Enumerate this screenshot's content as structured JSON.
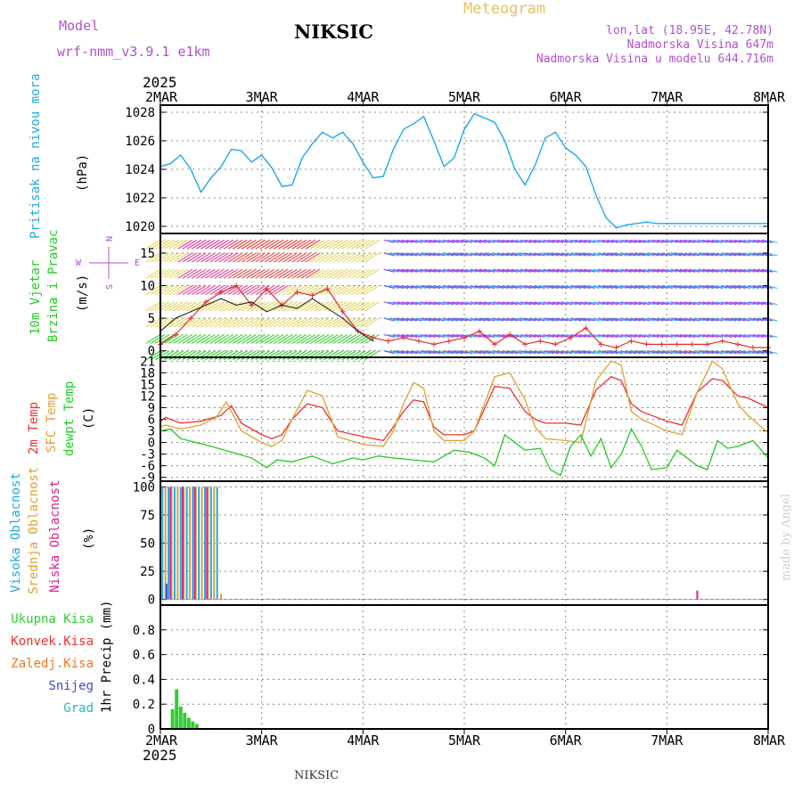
{
  "header": {
    "model_label": "Model",
    "model_name": "wrf-nmm_v3.9.1  e1km",
    "title": "NIKSIC",
    "meteogram": "Meteogram",
    "lonlat": "lon,lat (18.95E, 42.78N)",
    "elevation": "Nadmorska Visina 647m",
    "model_elevation": "Nadmorska Visina u modelu 644.716m",
    "footer_station": "NIKSIC",
    "credit": "made by Angel"
  },
  "colors": {
    "pressure": "#1fa8e6",
    "temp2m": "#ee3030",
    "sfc_temp": "#e0a030",
    "dewpt": "#22cc22",
    "high_cloud": "#1fa8e6",
    "mid_cloud": "#e0a030",
    "low_cloud": "#dd2288",
    "total_precip": "#33cc33",
    "conv_precip": "#ee3030",
    "frz_precip": "#ee7722",
    "snow": "#4444dd",
    "hail": "#22bbbb",
    "header_purple": "#b050d0",
    "meteogram_gold": "#e8c060"
  },
  "time_axis": {
    "year": "2025",
    "labels": [
      "2MAR",
      "3MAR",
      "4MAR",
      "5MAR",
      "6MAR",
      "7MAR",
      "8MAR"
    ]
  },
  "chart_data": [
    {
      "type": "line",
      "panel": "pressure",
      "ylabel_side": "Pritisak na nivou mora",
      "unit": "(hPa)",
      "ylim": [
        1019.5,
        1028.5
      ],
      "yticks": [
        1020,
        1022,
        1024,
        1026,
        1028
      ],
      "x_days": [
        0,
        0.1,
        0.2,
        0.3,
        0.4,
        0.5,
        0.6,
        0.7,
        0.8,
        0.9,
        1.0,
        1.1,
        1.2,
        1.3,
        1.4,
        1.5,
        1.6,
        1.7,
        1.8,
        1.9,
        2.0,
        2.1,
        2.2,
        2.3,
        2.4,
        2.5,
        2.6,
        2.7,
        2.8,
        2.9,
        3.0,
        3.1,
        3.2,
        3.3,
        3.4,
        3.5,
        3.6,
        3.7,
        3.8,
        3.9,
        4.0,
        4.1,
        4.2,
        4.3,
        4.4,
        4.5,
        4.6,
        4.7,
        4.8,
        4.9,
        5.0,
        5.1,
        5.2,
        5.3,
        5.4,
        5.5,
        5.6,
        5.7,
        5.8,
        5.9,
        6.0
      ],
      "values": [
        1024.2,
        1024.4,
        1025.0,
        1024.0,
        1022.4,
        1023.4,
        1024.2,
        1025.4,
        1025.3,
        1024.5,
        1025.0,
        1024.1,
        1022.8,
        1022.9,
        1024.8,
        1025.8,
        1026.6,
        1026.2,
        1026.6,
        1025.8,
        1024.5,
        1023.4,
        1023.5,
        1025.4,
        1026.8,
        1027.2,
        1027.7,
        1026.0,
        1024.2,
        1024.8,
        1026.8,
        1027.9,
        1027.6,
        1027.3,
        1026.0,
        1024.0,
        1022.9,
        1024.3,
        1026.2,
        1026.6,
        1025.5,
        1025.0,
        1024.2,
        1022.2,
        1020.6,
        1019.9,
        1020.1,
        1020.2,
        1020.3,
        1020.2,
        1020.2,
        1020.2,
        1020.2,
        1020.2,
        1020.2,
        1020.2,
        1020.2,
        1020.2,
        1020.2,
        1020.2,
        1020.2
      ]
    },
    {
      "type": "line",
      "panel": "wind",
      "ylabel_side": [
        "10m Vjetar",
        "Brzina i Pravac"
      ],
      "unit": "(m/s)",
      "compass": [
        "N",
        "W",
        "E",
        "S"
      ],
      "ylim": [
        -1,
        18
      ],
      "yticks": [
        0,
        5,
        10,
        15
      ],
      "series": [
        {
          "x": [
            0,
            0.15,
            0.3,
            0.45,
            0.6,
            0.75,
            0.9,
            1.05,
            1.2,
            1.35,
            1.5,
            1.65,
            1.8,
            1.95,
            2.1,
            2.25,
            2.4,
            2.55,
            2.7,
            2.85,
            3.0,
            3.15,
            3.3,
            3.45,
            3.6,
            3.75,
            3.9,
            4.05,
            4.2,
            4.35,
            4.5,
            4.65,
            4.8,
            4.95,
            5.1,
            5.25,
            5.4,
            5.55,
            5.7,
            5.85,
            6.0
          ],
          "values": [
            1.0,
            2.5,
            5.0,
            7.5,
            9.0,
            10.0,
            7.0,
            9.5,
            7.0,
            9.0,
            8.5,
            9.5,
            6.0,
            3.0,
            2.0,
            1.5,
            2.0,
            1.5,
            1.0,
            1.5,
            2.0,
            3.0,
            1.0,
            2.5,
            1.0,
            1.5,
            1.0,
            2.0,
            3.5,
            1.0,
            0.5,
            1.5,
            1.0,
            1.0,
            1.0,
            1.0,
            1.0,
            1.5,
            1.0,
            0.5,
            0.5
          ]
        },
        {
          "x": [
            0,
            0.15,
            0.3,
            0.45,
            0.6,
            0.75,
            0.9,
            1.05,
            1.2,
            1.35,
            1.5,
            1.65,
            1.8,
            1.95,
            2.1
          ],
          "values": [
            3.0,
            5.0,
            6.0,
            7.0,
            8.0,
            7.0,
            7.5,
            6.0,
            7.0,
            6.5,
            8.0,
            6.5,
            5.0,
            3.0,
            1.5
          ]
        }
      ]
    },
    {
      "type": "line",
      "panel": "temperature",
      "ylabel_side": [
        "2m Temp",
        "SFC Temp",
        "dewpt Temp"
      ],
      "unit": "(C)",
      "ylim": [
        -10,
        22
      ],
      "yticks": [
        -9,
        -6,
        -3,
        0,
        3,
        6,
        9,
        12,
        15,
        18,
        21
      ],
      "series": [
        {
          "name": "2m Temp",
          "x": [
            0,
            0.05,
            0.2,
            0.4,
            0.6,
            0.7,
            0.8,
            1.0,
            1.1,
            1.2,
            1.3,
            1.45,
            1.6,
            1.75,
            2.0,
            2.2,
            2.3,
            2.4,
            2.5,
            2.6,
            2.7,
            2.8,
            3.0,
            3.1,
            3.3,
            3.45,
            3.6,
            3.7,
            3.8,
            4.0,
            4.15,
            4.3,
            4.45,
            4.55,
            4.65,
            4.75,
            5.0,
            5.15,
            5.3,
            5.45,
            5.55,
            5.7,
            5.8,
            6.0
          ],
          "values": [
            5.5,
            6.5,
            5.0,
            5.5,
            7.0,
            9.5,
            5.0,
            2.0,
            1.0,
            2.0,
            6.0,
            10.0,
            9.0,
            3.0,
            1.5,
            0.5,
            4.0,
            8.0,
            11.0,
            10.5,
            4.0,
            2.0,
            2.0,
            3.0,
            14.5,
            14.0,
            8.0,
            6.0,
            5.0,
            5.0,
            4.5,
            13.5,
            17.0,
            16.0,
            10.0,
            8.0,
            5.5,
            4.5,
            13.0,
            16.5,
            16.0,
            12.0,
            11.5,
            9.0
          ]
        },
        {
          "name": "SFC Temp",
          "x": [
            0,
            0.05,
            0.2,
            0.4,
            0.55,
            0.65,
            0.8,
            1.0,
            1.1,
            1.2,
            1.3,
            1.45,
            1.6,
            1.75,
            2.0,
            2.2,
            2.3,
            2.4,
            2.5,
            2.6,
            2.7,
            2.8,
            3.0,
            3.1,
            3.3,
            3.45,
            3.6,
            3.7,
            3.8,
            4.0,
            4.15,
            4.3,
            4.45,
            4.55,
            4.65,
            4.75,
            5.0,
            5.15,
            5.3,
            5.45,
            5.55,
            5.7,
            5.8,
            6.0
          ],
          "values": [
            4.0,
            4.5,
            3.5,
            4.5,
            6.5,
            10.5,
            3.0,
            0.0,
            -1.0,
            0.5,
            6.0,
            13.5,
            12.0,
            1.5,
            -0.5,
            -1.0,
            3.0,
            10.0,
            15.5,
            14.0,
            3.0,
            0.5,
            0.5,
            3.0,
            17.0,
            18.0,
            11.0,
            4.0,
            1.0,
            0.5,
            0.0,
            16.0,
            21.0,
            20.0,
            8.0,
            6.0,
            3.0,
            2.0,
            13.0,
            21.0,
            19.0,
            10.0,
            7.0,
            2.5
          ]
        },
        {
          "name": "dewpt Temp",
          "x": [
            0,
            0.1,
            0.2,
            0.35,
            0.5,
            0.7,
            0.9,
            1.05,
            1.15,
            1.3,
            1.5,
            1.7,
            1.9,
            2.0,
            2.15,
            2.3,
            2.5,
            2.7,
            2.9,
            3.05,
            3.2,
            3.3,
            3.4,
            3.5,
            3.6,
            3.75,
            3.85,
            3.95,
            4.05,
            4.15,
            4.25,
            4.35,
            4.45,
            4.55,
            4.65,
            4.75,
            4.85,
            5.0,
            5.1,
            5.2,
            5.3,
            5.4,
            5.5,
            5.6,
            5.7,
            5.85,
            6.0
          ],
          "values": [
            3.0,
            3.5,
            1.0,
            0.0,
            -1.0,
            -2.5,
            -4.0,
            -6.5,
            -4.5,
            -5.0,
            -3.5,
            -5.5,
            -4.0,
            -4.5,
            -3.5,
            -4.0,
            -4.5,
            -5.0,
            -2.0,
            -2.5,
            -4.0,
            -6.0,
            2.0,
            0.0,
            -2.0,
            -1.5,
            -7.0,
            -8.5,
            -1.0,
            2.0,
            -3.5,
            1.0,
            -6.5,
            -3.0,
            3.5,
            -1.0,
            -7.0,
            -6.5,
            -2.0,
            -4.0,
            -6.0,
            -7.0,
            0.5,
            -1.5,
            -1.0,
            0.5,
            -4.0
          ]
        }
      ]
    },
    {
      "type": "bar",
      "panel": "cloud",
      "ylabel_side": [
        "Visoka Oblacnost",
        "Srednja Oblacnost",
        "Niska Oblacnost"
      ],
      "unit": "(%)",
      "ylim": [
        -5,
        105
      ],
      "yticks": [
        0,
        25,
        50,
        75,
        100
      ],
      "series": [
        {
          "name": "Visoka Oblacnost",
          "x": [
            0.02,
            0.08,
            0.14,
            0.2,
            0.26,
            0.32,
            0.38,
            0.44,
            0.5,
            0.56
          ],
          "values": [
            100,
            100,
            100,
            100,
            100,
            100,
            100,
            100,
            100,
            100
          ]
        },
        {
          "name": "Srednja Oblacnost",
          "x": [
            0.05,
            0.11,
            0.17,
            0.23,
            0.29,
            0.35,
            0.41,
            0.47,
            0.53,
            0.6
          ],
          "values": [
            100,
            100,
            100,
            100,
            100,
            100,
            100,
            100,
            100,
            5
          ]
        },
        {
          "name": "Niska Oblacnost",
          "x": [
            0.1,
            0.22,
            0.34,
            0.46,
            5.3
          ],
          "values": [
            100,
            100,
            100,
            100,
            8
          ]
        }
      ]
    },
    {
      "type": "bar",
      "panel": "precip",
      "ylabel_side": [
        "Ukupna Kisa",
        "Konvek.Kisa",
        "Zaledj.Kisa",
        "Snijeg",
        "Grad"
      ],
      "unit": "1hr Precip (mm)",
      "ylim": [
        0,
        1.0
      ],
      "yticks": [
        0,
        0.2,
        0.4,
        0.6,
        0.8
      ],
      "x_days": [
        0.12,
        0.16,
        0.2,
        0.24,
        0.28,
        0.32,
        0.36
      ],
      "values": [
        0.16,
        0.32,
        0.18,
        0.13,
        0.09,
        0.06,
        0.04
      ]
    }
  ]
}
